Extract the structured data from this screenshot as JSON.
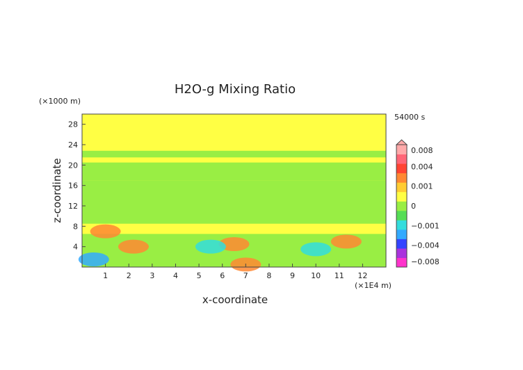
{
  "chart_data": {
    "type": "heatmap",
    "title": "H2O-g Mixing Ratio",
    "xlabel": "x-coordinate",
    "ylabel": "z-coordinate",
    "x_unit_label": "(×1E4 m)",
    "y_unit_label": "(×1000 m)",
    "time_label": "54000 s",
    "xlim": [
      0,
      13
    ],
    "ylim": [
      0,
      30
    ],
    "x_ticks": [
      1,
      2,
      3,
      4,
      5,
      6,
      7,
      8,
      9,
      10,
      11,
      12
    ],
    "x_tick_labels": [
      "1",
      "2",
      "3",
      "4",
      "5",
      "6",
      "7",
      "8",
      "9",
      "10",
      "11",
      "12"
    ],
    "y_ticks": [
      4,
      8,
      12,
      16,
      20,
      24,
      28
    ],
    "y_tick_labels": [
      "4",
      "8",
      "12",
      "16",
      "20",
      "24",
      "28"
    ],
    "colorbar": {
      "ticks": [
        0.008,
        0.004,
        0.001,
        0,
        -0.001,
        -0.004,
        -0.008
      ],
      "tick_labels": [
        "0.008",
        "0.004",
        "0.001",
        "0",
        "−0.001",
        "−0.004",
        "−0.008"
      ],
      "colors": [
        "#ff33cc",
        "#aa33dd",
        "#3344ff",
        "#33aaff",
        "#33dddd",
        "#55dd55",
        "#99ee44",
        "#ffff44",
        "#ffcc33",
        "#ff8833",
        "#ff4433",
        "#ff6677",
        "#ffaaaa"
      ]
    },
    "fields": {
      "background_color": "#ffff44",
      "bands": [
        {
          "z_range": [
            21.5,
            22.8
          ],
          "color": "#99ee44"
        },
        {
          "z_range": [
            17.0,
            20.5
          ],
          "color": "#99ee44"
        },
        {
          "z_range": [
            8.5,
            17.0
          ],
          "color": "#99ee44"
        },
        {
          "z_range": [
            0.0,
            6.5
          ],
          "color": "#99ee44"
        }
      ],
      "anomalies": [
        {
          "x": 1.0,
          "z": 7.0,
          "color": "#ff8833"
        },
        {
          "x": 2.2,
          "z": 4.0,
          "color": "#ff8833"
        },
        {
          "x": 6.5,
          "z": 4.5,
          "color": "#ff8833"
        },
        {
          "x": 11.3,
          "z": 5.0,
          "color": "#ff8833"
        },
        {
          "x": 5.5,
          "z": 4.0,
          "color": "#33dddd"
        },
        {
          "x": 10.0,
          "z": 3.5,
          "color": "#33dddd"
        },
        {
          "x": 0.5,
          "z": 1.5,
          "color": "#33aaff"
        },
        {
          "x": 7.0,
          "z": 0.5,
          "color": "#ff8833"
        }
      ]
    }
  }
}
